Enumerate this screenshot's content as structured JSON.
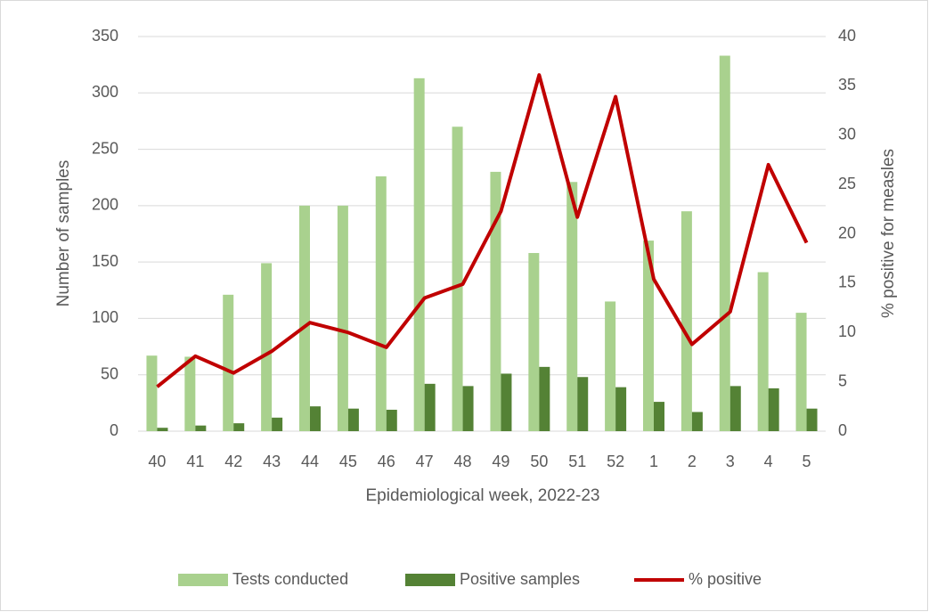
{
  "chart_data": {
    "type": "bar-line",
    "x_label": "Epidemiological week, 2022-23",
    "y_label": "Number of samples",
    "y2_label": "% positive for measles",
    "categories": [
      "40",
      "41",
      "42",
      "43",
      "44",
      "45",
      "46",
      "47",
      "48",
      "49",
      "50",
      "51",
      "52",
      "1",
      "2",
      "3",
      "4",
      "5"
    ],
    "series": [
      {
        "name": "Tests conducted",
        "type": "bar",
        "color": "#a9d18e",
        "values": [
          67,
          66,
          121,
          149,
          200,
          200,
          226,
          313,
          270,
          230,
          158,
          221,
          115,
          169,
          195,
          333,
          141,
          105
        ]
      },
      {
        "name": "Positive samples",
        "type": "bar",
        "color": "#548235",
        "values": [
          3,
          5,
          7,
          12,
          22,
          20,
          19,
          42,
          40,
          51,
          57,
          48,
          39,
          26,
          17,
          40,
          38,
          20
        ]
      },
      {
        "name": "% positive",
        "type": "line",
        "axis": "y2",
        "color": "#c00000",
        "values": [
          4.5,
          7.6,
          5.9,
          8.1,
          11.0,
          10.0,
          8.5,
          13.5,
          14.9,
          22.3,
          36.1,
          21.7,
          33.9,
          15.4,
          8.8,
          12.1,
          27.0,
          19.1
        ]
      }
    ],
    "ylim": [
      0,
      350
    ],
    "yticks": [
      0,
      50,
      100,
      150,
      200,
      250,
      300,
      350
    ],
    "y2lim": [
      0,
      40
    ],
    "y2ticks": [
      0,
      5,
      10,
      15,
      20,
      25,
      30,
      35,
      40
    ],
    "grid": true,
    "legend": "bottom"
  }
}
